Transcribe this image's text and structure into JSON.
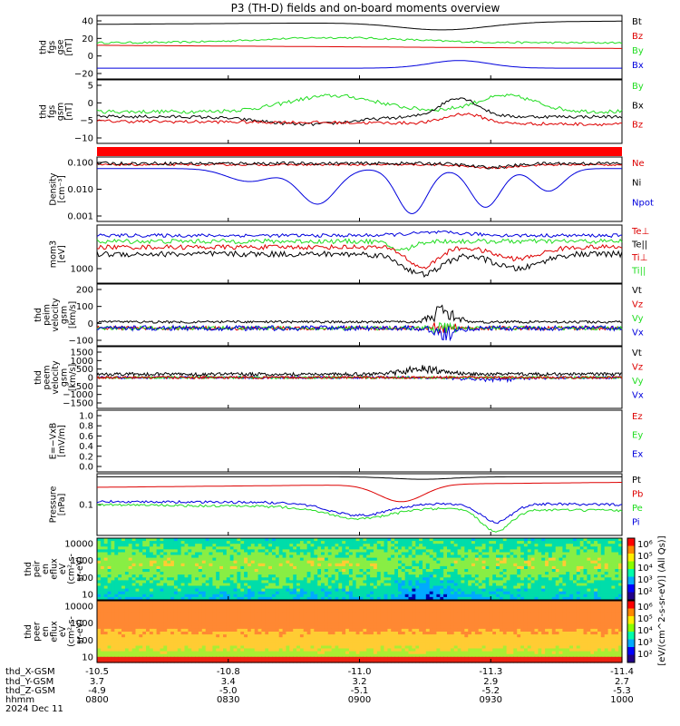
{
  "title": "P3 (TH-D) fields and on-board moments overview",
  "colors": {
    "black": "#000000",
    "red": "#dd0000",
    "green": "#22dd22",
    "blue": "#0000dd"
  },
  "chart_data": {
    "type": "line",
    "x_range": [
      "0800",
      "1000"
    ],
    "panels": [
      {
        "id": "fgs_gse",
        "ylabel": [
          "thd",
          "fgs",
          "gse",
          "[nT]"
        ],
        "ylim": [
          -30,
          45
        ],
        "ticks": [
          "40",
          "20",
          "0",
          "−20"
        ],
        "legend": [
          {
            "label": "Bt",
            "color": "#000000"
          },
          {
            "label": "Bz",
            "color": "#dd0000"
          },
          {
            "label": "By",
            "color": "#22dd22"
          },
          {
            "label": "Bx",
            "color": "#0000dd"
          }
        ]
      },
      {
        "id": "fgs_gsm",
        "ylabel": [
          "thd",
          "fgs",
          "gsm",
          "[nT]"
        ],
        "ylim": [
          -15,
          9
        ],
        "ticks": [
          "5",
          "0",
          "−5",
          "−10"
        ],
        "legend": [
          {
            "label": "By",
            "color": "#22dd22"
          },
          {
            "label": "Bx",
            "color": "#000000"
          },
          {
            "label": "Bz",
            "color": "#dd0000"
          }
        ]
      },
      {
        "id": "density",
        "ylabel": [
          "Density",
          "[cm⁻³]"
        ],
        "ylim": [
          0.0005,
          0.2
        ],
        "log": true,
        "ticks": [
          "0.100",
          "0.010",
          "0.001"
        ],
        "legend": [
          {
            "label": "Ne",
            "color": "#dd0000"
          },
          {
            "label": "Ni",
            "color": "#000000"
          },
          {
            "label": "Npot",
            "color": "#0000dd"
          }
        ]
      },
      {
        "id": "temperature",
        "ylabel": [
          "mom3",
          "[eV]"
        ],
        "log": true,
        "ticks": [
          "1000"
        ],
        "legend": [
          {
            "label": "Te⊥",
            "color": "#dd0000"
          },
          {
            "label": "Te||",
            "color": "#000000"
          },
          {
            "label": "Ti⊥",
            "color": "#dd0000"
          },
          {
            "label": "Ti||",
            "color": "#22dd22"
          }
        ]
      },
      {
        "id": "peim_velocity",
        "ylabel": [
          "thd",
          "peim",
          "velocity",
          "gsm",
          "[km/s]"
        ],
        "ylim": [
          -100,
          250
        ],
        "ticks": [
          "200",
          "100",
          "0",
          "−100"
        ],
        "legend": [
          {
            "label": "Vt",
            "color": "#000000"
          },
          {
            "label": "Vz",
            "color": "#dd0000"
          },
          {
            "label": "Vy",
            "color": "#22dd22"
          },
          {
            "label": "Vx",
            "color": "#0000dd"
          }
        ]
      },
      {
        "id": "peem_velocity",
        "ylabel": [
          "thd",
          "peem",
          "velocity",
          "gsm",
          "[km/s]"
        ],
        "ylim": [
          -1500,
          1500
        ],
        "ticks": [
          "1500",
          "1000",
          "500",
          "0",
          "−500",
          "−1000",
          "−1500"
        ],
        "legend": [
          {
            "label": "Vt",
            "color": "#000000"
          },
          {
            "label": "Vz",
            "color": "#dd0000"
          },
          {
            "label": "Vy",
            "color": "#22dd22"
          },
          {
            "label": "Vx",
            "color": "#0000dd"
          }
        ]
      },
      {
        "id": "efield",
        "ylabel": [
          "E=−VxB",
          "[mV/m]"
        ],
        "ylim": [
          0,
          1
        ],
        "ticks": [
          "1.0",
          "0.8",
          "0.6",
          "0.4",
          "0.2",
          "0.0"
        ],
        "legend": [
          {
            "label": "Ez",
            "color": "#dd0000"
          },
          {
            "label": "Ey",
            "color": "#22dd22"
          },
          {
            "label": "Ex",
            "color": "#0000dd"
          }
        ]
      },
      {
        "id": "pressure",
        "ylabel": [
          "Pressure",
          "[nPa]"
        ],
        "log": true,
        "ticks": [
          "0.1"
        ],
        "legend": [
          {
            "label": "Pt",
            "color": "#000000"
          },
          {
            "label": "Pb",
            "color": "#dd0000"
          },
          {
            "label": "Pe",
            "color": "#22dd22"
          },
          {
            "label": "Pi",
            "color": "#0000dd"
          }
        ]
      },
      {
        "id": "peir_eflux",
        "ylabel": [
          "thd",
          "peir",
          "en",
          "eflux",
          "eV",
          "(cm²-s-",
          "sr-eV)"
        ],
        "ticks": [
          "10000",
          "1000",
          "100",
          "10"
        ],
        "kind": "spectrogram"
      },
      {
        "id": "peer_eflux",
        "ylabel": [
          "thd",
          "peer",
          "en",
          "eflux",
          "eV",
          "(cm²-s-",
          "sr-eV)"
        ],
        "ticks": [
          "10000",
          "1000",
          "100",
          "10"
        ],
        "kind": "spectrogram"
      }
    ],
    "colorbar": {
      "ticks": [
        "10⁶",
        "10⁵",
        "10⁴",
        "10³",
        "10²",
        "10⁶",
        "10⁵",
        "10⁴",
        "10³",
        "10²"
      ],
      "label": "[eV/(cm^2-s-sr-eV)] (All Qs)]"
    },
    "footer": {
      "row_labels": [
        "thd_X-GSM",
        "thd_Y-GSM",
        "thd_Z-GSM",
        "hhmm",
        "2024 Dec 11"
      ],
      "columns": [
        {
          "x": "-10.5",
          "y": "3.7",
          "z": "-4.9",
          "t": "0800"
        },
        {
          "x": "-10.8",
          "y": "3.4",
          "z": "-5.0",
          "t": "0830"
        },
        {
          "x": "-11.0",
          "y": "3.2",
          "z": "-5.1",
          "t": "0900"
        },
        {
          "x": "-11.3",
          "y": "2.9",
          "z": "-5.2",
          "t": "0930"
        },
        {
          "x": "-11.4",
          "y": "2.7",
          "z": "-5.3",
          "t": "1000"
        }
      ]
    }
  }
}
